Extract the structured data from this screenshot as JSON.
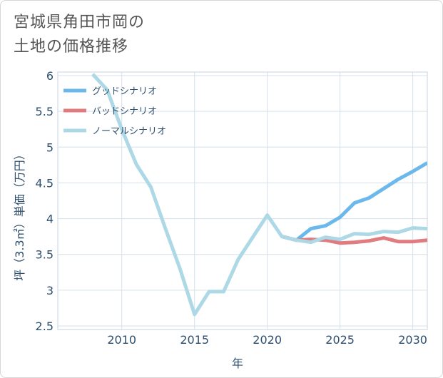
{
  "title_line1": "宮城県角田市岡の",
  "title_line2": "土地の価格推移",
  "chart_data": {
    "type": "line",
    "xlabel": "年",
    "ylabel": "坪（3.3㎡）単価（万円）",
    "xlim": [
      2005.6,
      2031
    ],
    "ylim": [
      2.45,
      6.05
    ],
    "x_ticks": [
      2010,
      2015,
      2020,
      2025,
      2030
    ],
    "y_ticks": [
      2.5,
      3,
      3.5,
      4,
      4.5,
      5,
      5.5,
      6
    ],
    "y_tick_labels": [
      "2.5",
      "3",
      "3.5",
      "4",
      "4.5",
      "5",
      "5.5",
      "6"
    ],
    "legend_position": "top-left",
    "series": [
      {
        "name": "グッドシナリオ",
        "color": "#6bb8ec",
        "x": [
          2021,
          2022,
          2023,
          2024,
          2025,
          2026,
          2027,
          2028,
          2029,
          2030,
          2031
        ],
        "y": [
          3.75,
          3.7,
          3.86,
          3.9,
          4.02,
          4.22,
          4.29,
          4.42,
          4.55,
          4.66,
          4.78
        ]
      },
      {
        "name": "バッドシナリオ",
        "color": "#e07b80",
        "x": [
          2021,
          2022,
          2023,
          2024,
          2025,
          2026,
          2027,
          2028,
          2029,
          2030,
          2031
        ],
        "y": [
          3.75,
          3.7,
          3.71,
          3.7,
          3.66,
          3.67,
          3.69,
          3.73,
          3.68,
          3.68,
          3.7
        ]
      },
      {
        "name": "ノーマルシナリオ",
        "color": "#add8e6",
        "x": [
          2008,
          2009,
          2010,
          2011,
          2012,
          2013,
          2014,
          2015,
          2016,
          2017,
          2018,
          2019,
          2020,
          2021,
          2022,
          2023,
          2024,
          2025,
          2026,
          2027,
          2028,
          2029,
          2030,
          2031
        ],
        "y": [
          6.02,
          5.8,
          5.25,
          4.76,
          4.44,
          3.86,
          3.3,
          2.66,
          2.98,
          2.98,
          3.43,
          3.74,
          4.05,
          3.75,
          3.7,
          3.67,
          3.74,
          3.71,
          3.79,
          3.78,
          3.82,
          3.81,
          3.87,
          3.86
        ]
      }
    ]
  }
}
